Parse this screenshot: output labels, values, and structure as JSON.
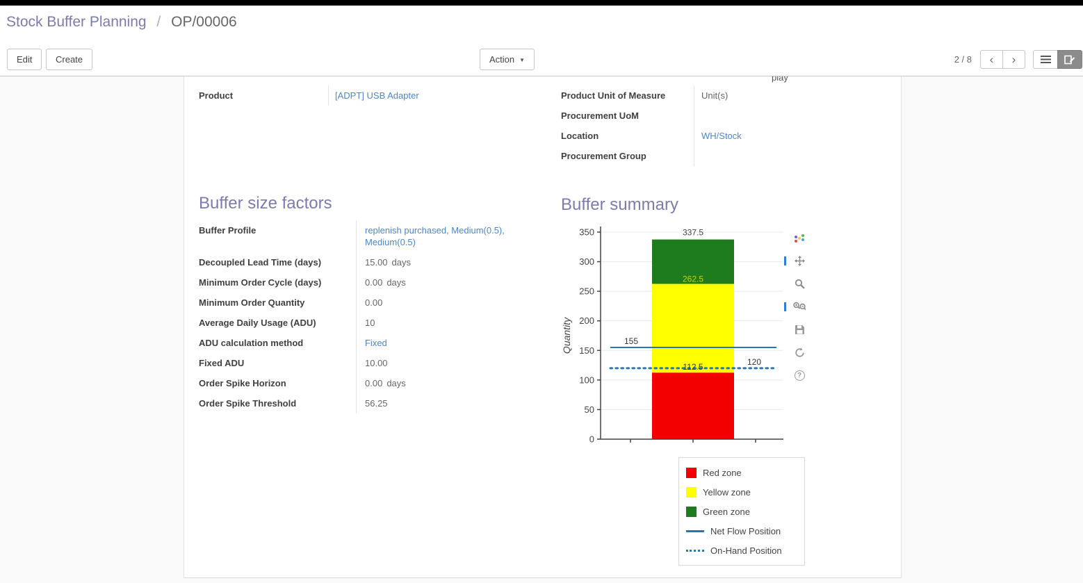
{
  "breadcrumb": {
    "parent": "Stock Buffer Planning",
    "separator": "/",
    "current": "OP/00006"
  },
  "toolbar": {
    "edit_label": "Edit",
    "create_label": "Create",
    "action_label": "Action",
    "pager": "2 / 8"
  },
  "icons": {
    "action_caret": "▼",
    "pager_prev": "‹",
    "pager_next": "›",
    "help_glyph": "?"
  },
  "form": {
    "partial_top_text": "play",
    "fields_left": [
      {
        "label": "Product",
        "value": "[ADPT] USB Adapter",
        "link": true
      }
    ],
    "fields_right": [
      {
        "label": "Product Unit of Measure",
        "value": "Unit(s)",
        "link": false
      },
      {
        "label": "Procurement UoM",
        "value": "",
        "link": false
      },
      {
        "label": "Location",
        "value": "WH/Stock",
        "link": true
      },
      {
        "label": "Procurement Group",
        "value": "",
        "link": false
      }
    ],
    "buffer_factors": {
      "title": "Buffer size factors",
      "rows": [
        {
          "label": "Buffer Profile",
          "value": "replenish purchased, Medium(0.5), Medium(0.5)",
          "suffix": "",
          "link": true
        },
        {
          "label": "Decoupled Lead Time (days)",
          "value": "15.00",
          "suffix": "days",
          "link": false
        },
        {
          "label": "Minimum Order Cycle (days)",
          "value": "0.00",
          "suffix": "days",
          "link": false
        },
        {
          "label": "Minimum Order Quantity",
          "value": "0.00",
          "suffix": "",
          "link": false
        },
        {
          "label": "Average Daily Usage (ADU)",
          "value": "10",
          "suffix": "",
          "link": false
        },
        {
          "label": "ADU calculation method",
          "value": "Fixed",
          "suffix": "",
          "link": true
        },
        {
          "label": "Fixed ADU",
          "value": "10.00",
          "suffix": "",
          "link": false
        },
        {
          "label": "Order Spike Horizon",
          "value": "0.00",
          "suffix": "days",
          "link": false
        },
        {
          "label": "Order Spike Threshold",
          "value": "56.25",
          "suffix": "",
          "link": false
        }
      ]
    },
    "buffer_summary_title": "Buffer summary"
  },
  "chart_data": {
    "type": "bar",
    "title": "Buffer summary",
    "ylabel": "Quantity",
    "xlabel": "",
    "ylim": [
      0,
      350
    ],
    "yticks": [
      0,
      50,
      100,
      150,
      200,
      250,
      300,
      350
    ],
    "grid": true,
    "zones": [
      {
        "name": "Red zone",
        "from": 0,
        "to": 112.5,
        "color": "#f20000"
      },
      {
        "name": "Yellow zone",
        "from": 112.5,
        "to": 262.5,
        "color": "#ffff00"
      },
      {
        "name": "Green zone",
        "from": 262.5,
        "to": 337.5,
        "color": "#1e7b1e"
      }
    ],
    "lines": [
      {
        "name": "Net Flow Position",
        "value": 155,
        "style": "solid",
        "color": "#2577b2"
      },
      {
        "name": "On-Hand Position",
        "value": 120,
        "style": "dotted",
        "color": "#2577b2"
      }
    ],
    "annotations": [
      {
        "text": "337.5",
        "value": 337.5,
        "anchor": "center",
        "dy": -6,
        "color": "#444444"
      },
      {
        "text": "262.5",
        "value": 262.5,
        "anchor": "center",
        "dy": -3,
        "color": "#c9d400"
      },
      {
        "text": "155",
        "value": 155,
        "anchor": "left",
        "dy": -5,
        "color": "#333333"
      },
      {
        "text": "112.5",
        "value": 112.5,
        "anchor": "center",
        "dy": -4,
        "color": "#333333"
      },
      {
        "text": "120",
        "value": 120,
        "anchor": "right",
        "dy": -5,
        "color": "#333333"
      }
    ],
    "legend_position": "bottom-right",
    "legend": [
      {
        "label": "Red zone",
        "swatch": "box",
        "color": "#f20000"
      },
      {
        "label": "Yellow zone",
        "swatch": "box",
        "color": "#ffff00"
      },
      {
        "label": "Green zone",
        "swatch": "box",
        "color": "#1e7b1e"
      },
      {
        "label": "Net Flow Position",
        "swatch": "line",
        "color": "#2577b2"
      },
      {
        "label": "On-Hand Position",
        "swatch": "dotted",
        "color": "#2577b2"
      }
    ]
  }
}
